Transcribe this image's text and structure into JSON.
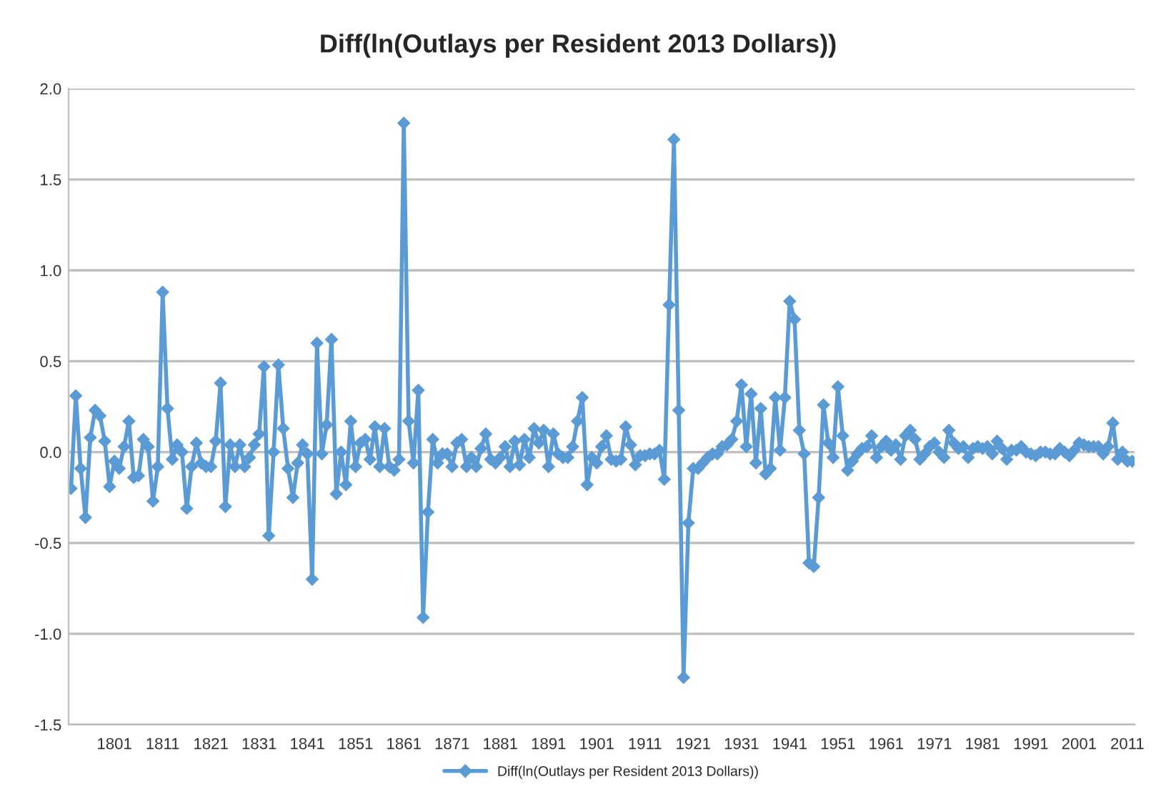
{
  "chart_data": {
    "type": "line",
    "title": "Diff(ln(Outlays per Resident 2013 Dollars))",
    "x": [
      1792,
      1793,
      1794,
      1795,
      1796,
      1797,
      1798,
      1799,
      1800,
      1801,
      1802,
      1803,
      1804,
      1805,
      1806,
      1807,
      1808,
      1809,
      1810,
      1811,
      1812,
      1813,
      1814,
      1815,
      1816,
      1817,
      1818,
      1819,
      1820,
      1821,
      1822,
      1823,
      1824,
      1825,
      1826,
      1827,
      1828,
      1829,
      1830,
      1831,
      1832,
      1833,
      1834,
      1835,
      1836,
      1837,
      1838,
      1839,
      1840,
      1841,
      1842,
      1843,
      1844,
      1845,
      1846,
      1847,
      1848,
      1849,
      1850,
      1851,
      1852,
      1853,
      1854,
      1855,
      1856,
      1857,
      1858,
      1859,
      1860,
      1861,
      1862,
      1863,
      1864,
      1865,
      1866,
      1867,
      1868,
      1869,
      1870,
      1871,
      1872,
      1873,
      1874,
      1875,
      1876,
      1877,
      1878,
      1879,
      1880,
      1881,
      1882,
      1883,
      1884,
      1885,
      1886,
      1887,
      1888,
      1889,
      1890,
      1891,
      1892,
      1893,
      1894,
      1895,
      1896,
      1897,
      1898,
      1899,
      1900,
      1901,
      1902,
      1903,
      1904,
      1905,
      1906,
      1907,
      1908,
      1909,
      1910,
      1911,
      1912,
      1913,
      1914,
      1915,
      1916,
      1917,
      1918,
      1919,
      1920,
      1921,
      1922,
      1923,
      1924,
      1925,
      1926,
      1927,
      1928,
      1929,
      1930,
      1931,
      1932,
      1933,
      1934,
      1935,
      1936,
      1937,
      1938,
      1939,
      1940,
      1941,
      1942,
      1943,
      1944,
      1945,
      1946,
      1947,
      1948,
      1949,
      1950,
      1951,
      1952,
      1953,
      1954,
      1955,
      1956,
      1957,
      1958,
      1959,
      1960,
      1961,
      1962,
      1963,
      1964,
      1965,
      1966,
      1967,
      1968,
      1969,
      1970,
      1971,
      1972,
      1973,
      1974,
      1975,
      1976,
      1977,
      1978,
      1979,
      1980,
      1981,
      1982,
      1983,
      1984,
      1985,
      1986,
      1987,
      1988,
      1989,
      1990,
      1991,
      1992,
      1993,
      1994,
      1995,
      1996,
      1997,
      1998,
      1999,
      2000,
      2001,
      2002,
      2003,
      2004,
      2005,
      2006,
      2007,
      2008,
      2009,
      2010,
      2011,
      2012
    ],
    "series": [
      {
        "name": "Diff(ln(Outlays per Resident 2013 Dollars))",
        "color": "#5b9bd5",
        "values": [
          -0.2,
          0.31,
          -0.09,
          -0.36,
          0.08,
          0.23,
          0.2,
          0.06,
          -0.19,
          -0.05,
          -0.09,
          0.03,
          0.17,
          -0.14,
          -0.13,
          0.07,
          0.03,
          -0.27,
          -0.08,
          0.88,
          0.24,
          -0.04,
          0.04,
          0.0,
          -0.31,
          -0.08,
          0.05,
          -0.06,
          -0.08,
          -0.08,
          0.06,
          0.38,
          -0.3,
          0.04,
          -0.08,
          0.04,
          -0.08,
          -0.03,
          0.04,
          0.1,
          0.47,
          -0.46,
          0.0,
          0.48,
          0.13,
          -0.09,
          -0.25,
          -0.06,
          0.04,
          -0.01,
          -0.7,
          0.6,
          -0.01,
          0.15,
          0.62,
          -0.23,
          0.0,
          -0.18,
          0.17,
          -0.08,
          0.05,
          0.07,
          -0.04,
          0.14,
          -0.08,
          0.13,
          -0.08,
          -0.1,
          -0.04,
          1.81,
          0.17,
          -0.06,
          0.34,
          -0.91,
          -0.33,
          0.07,
          -0.06,
          -0.01,
          -0.01,
          -0.08,
          0.05,
          0.07,
          -0.08,
          -0.03,
          -0.08,
          0.02,
          0.1,
          -0.04,
          -0.06,
          -0.03,
          0.03,
          -0.08,
          0.06,
          -0.07,
          0.07,
          -0.03,
          0.13,
          0.05,
          0.12,
          -0.08,
          0.1,
          -0.01,
          -0.03,
          -0.03,
          0.03,
          0.17,
          0.3,
          -0.18,
          -0.03,
          -0.06,
          0.03,
          0.09,
          -0.04,
          -0.05,
          -0.04,
          0.14,
          0.04,
          -0.07,
          -0.02,
          -0.02,
          -0.01,
          -0.01,
          0.01,
          -0.15,
          0.81,
          1.72,
          0.23,
          -1.24,
          -0.39,
          -0.09,
          -0.09,
          -0.06,
          -0.03,
          -0.01,
          -0.01,
          0.03,
          0.04,
          0.07,
          0.17,
          0.37,
          0.03,
          0.32,
          -0.06,
          0.24,
          -0.12,
          -0.09,
          0.3,
          0.01,
          0.3,
          0.83,
          0.73,
          0.12,
          -0.01,
          -0.61,
          -0.63,
          -0.25,
          0.26,
          0.05,
          -0.03,
          0.36,
          0.09,
          -0.1,
          -0.05,
          -0.01,
          0.02,
          0.03,
          0.09,
          -0.03,
          0.03,
          0.06,
          0.01,
          0.04,
          -0.04,
          0.09,
          0.12,
          0.07,
          -0.04,
          -0.01,
          0.03,
          0.05,
          0.0,
          -0.03,
          0.12,
          0.05,
          0.02,
          0.03,
          -0.03,
          0.02,
          0.03,
          0.02,
          0.03,
          -0.01,
          0.06,
          0.02,
          -0.04,
          0.01,
          0.01,
          0.03,
          0.0,
          -0.01,
          -0.02,
          0.0,
          0.0,
          -0.01,
          -0.01,
          0.02,
          0.0,
          -0.02,
          0.01,
          0.05,
          0.04,
          0.03,
          0.03,
          0.03,
          -0.01,
          0.03,
          0.16,
          -0.04,
          0.0,
          -0.05,
          -0.05
        ]
      }
    ],
    "xlim": [
      1791.5,
      2012.5
    ],
    "xticks": [
      1801,
      1811,
      1821,
      1831,
      1841,
      1851,
      1861,
      1871,
      1881,
      1891,
      1901,
      1911,
      1921,
      1931,
      1941,
      1951,
      1961,
      1971,
      1981,
      1991,
      2001,
      2011
    ],
    "ylim": [
      -1.5,
      2.0
    ],
    "yticks": [
      {
        "value": -1.5,
        "label": "-1.5"
      },
      {
        "value": -1.0,
        "label": "-1.0"
      },
      {
        "value": -0.5,
        "label": "-0.5"
      },
      {
        "value": 0.0,
        "label": "0.0"
      },
      {
        "value": 0.5,
        "label": "0.5"
      },
      {
        "value": 1.0,
        "label": "1.0"
      },
      {
        "value": 1.5,
        "label": "1.5"
      },
      {
        "value": 2.0,
        "label": "2.0"
      }
    ],
    "grid": "y",
    "legend": "bottom",
    "marker": "diamond",
    "line_style": "solid"
  }
}
